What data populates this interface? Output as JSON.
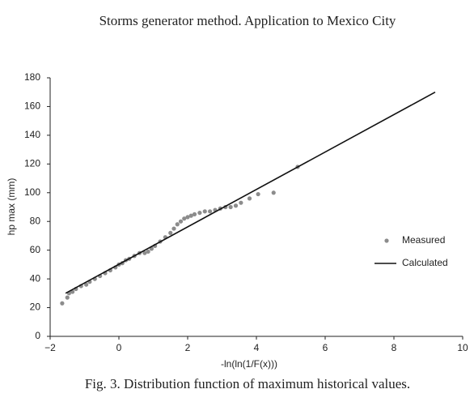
{
  "header": "Storms generator method. Application to Mexico City",
  "caption": "Fig. 3. Distribution function of maximum historical values.",
  "chart_data": {
    "type": "scatter",
    "x_label": "-ln(ln(1/F(x)))",
    "y_label": "hp max (mm)",
    "xlim": [
      -2,
      10
    ],
    "xticks": [
      {
        "value": -2,
        "label": "−2"
      },
      0,
      2,
      4,
      6,
      8,
      10
    ],
    "ylim": [
      0,
      180
    ],
    "yticks": [
      0,
      20,
      40,
      60,
      80,
      100,
      120,
      140,
      160,
      180
    ],
    "legend": "right",
    "series": [
      {
        "name": "Measured",
        "color": "#8c8c8c",
        "style": "markers",
        "x": [
          -1.65,
          -1.5,
          -1.45,
          -1.35,
          -1.25,
          -1.1,
          -0.95,
          -0.85,
          -0.7,
          -0.55,
          -0.4,
          -0.25,
          -0.1,
          0,
          0.1,
          0.2,
          0.3,
          0.45,
          0.6,
          0.75,
          0.85,
          0.95,
          1.05,
          1.2,
          1.35,
          1.5,
          1.6,
          1.7,
          1.8,
          1.9,
          2.0,
          2.1,
          2.2,
          2.35,
          2.5,
          2.65,
          2.8,
          2.95,
          3.1,
          3.25,
          3.4,
          3.55,
          3.8,
          4.05,
          4.5,
          5.2
        ],
        "values": [
          23,
          27,
          30,
          31,
          33,
          35,
          36,
          38,
          40,
          42,
          44,
          46,
          48,
          50,
          51,
          53,
          54,
          56,
          58,
          58,
          59,
          61,
          63,
          66,
          69,
          72,
          75,
          78,
          80,
          82,
          83,
          84,
          85,
          86,
          87,
          87,
          88,
          89,
          90,
          90,
          91,
          93,
          96,
          99,
          100,
          118
        ]
      },
      {
        "name": "Calculated",
        "color": "#111111",
        "style": "line",
        "x": [
          -1.55,
          9.2
        ],
        "values": [
          30,
          170
        ]
      }
    ]
  }
}
